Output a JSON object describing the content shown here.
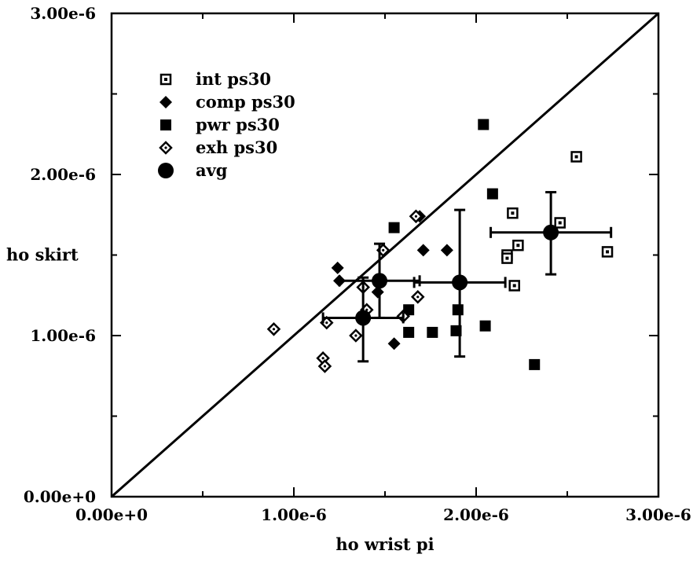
{
  "chart_data": {
    "type": "scatter",
    "title": "",
    "xlabel": "ho wrist pi",
    "ylabel": "ho skirt",
    "xlim": [
      0,
      3e-06
    ],
    "ylim": [
      0,
      3e-06
    ],
    "x_ticks": [
      0,
      1e-06,
      2e-06,
      3e-06
    ],
    "y_ticks": [
      0,
      1e-06,
      2e-06,
      3e-06
    ],
    "x_tick_labels": [
      "0.00e+0",
      "1.00e-6",
      "2.00e-6",
      "3.00e-6"
    ],
    "y_tick_labels": [
      "0.00e+0",
      "1.00e-6",
      "2.00e-6",
      "3.00e-6"
    ],
    "grid": false,
    "legend_position": "top-left",
    "reference_line": {
      "type": "diagonal",
      "from": [
        0,
        0
      ],
      "to": [
        3e-06,
        3e-06
      ]
    },
    "series": [
      {
        "name": "int ps30",
        "marker": "open-square-dot",
        "points": [
          [
            2.55e-06,
            2.11e-06
          ],
          [
            2.2e-06,
            1.76e-06
          ],
          [
            2.46e-06,
            1.7e-06
          ],
          [
            2.23e-06,
            1.56e-06
          ],
          [
            2.17e-06,
            1.5e-06
          ],
          [
            2.17e-06,
            1.48e-06
          ],
          [
            2.72e-06,
            1.52e-06
          ],
          [
            2.21e-06,
            1.31e-06
          ]
        ]
      },
      {
        "name": "comp ps30",
        "marker": "filled-diamond",
        "points": [
          [
            1.24e-06,
            1.42e-06
          ],
          [
            1.25e-06,
            1.34e-06
          ],
          [
            1.69e-06,
            1.74e-06
          ],
          [
            1.71e-06,
            1.53e-06
          ],
          [
            1.84e-06,
            1.53e-06
          ],
          [
            1.55e-06,
            9.5e-07
          ],
          [
            1.46e-06,
            1.27e-06
          ]
        ]
      },
      {
        "name": "pwr ps30",
        "marker": "filled-square",
        "points": [
          [
            2.04e-06,
            2.31e-06
          ],
          [
            2.09e-06,
            1.88e-06
          ],
          [
            1.55e-06,
            1.67e-06
          ],
          [
            1.63e-06,
            1.16e-06
          ],
          [
            1.9e-06,
            1.16e-06
          ],
          [
            1.63e-06,
            1.02e-06
          ],
          [
            1.76e-06,
            1.02e-06
          ],
          [
            1.89e-06,
            1.03e-06
          ],
          [
            2.05e-06,
            1.06e-06
          ],
          [
            2.32e-06,
            8.2e-07
          ]
        ]
      },
      {
        "name": "exh ps30",
        "marker": "open-diamond-dot",
        "points": [
          [
            8.9e-07,
            1.04e-06
          ],
          [
            1.18e-06,
            1.08e-06
          ],
          [
            1.16e-06,
            8.6e-07
          ],
          [
            1.17e-06,
            8.1e-07
          ],
          [
            1.34e-06,
            1e-06
          ],
          [
            1.38e-06,
            1.3e-06
          ],
          [
            1.4e-06,
            1.16e-06
          ],
          [
            1.49e-06,
            1.53e-06
          ],
          [
            1.6e-06,
            1.12e-06
          ],
          [
            1.68e-06,
            1.24e-06
          ],
          [
            1.67e-06,
            1.74e-06
          ]
        ]
      },
      {
        "name": "avg",
        "marker": "filled-circle",
        "points": [
          {
            "x": 1.38e-06,
            "y": 1.11e-06,
            "x_err": [
              1.16e-06,
              1.6e-06
            ],
            "y_err": [
              8.4e-07,
              1.36e-06
            ]
          },
          {
            "x": 1.47e-06,
            "y": 1.34e-06,
            "x_err": [
              1.25e-06,
              1.69e-06
            ],
            "y_err": [
              1.11e-06,
              1.57e-06
            ]
          },
          {
            "x": 1.91e-06,
            "y": 1.33e-06,
            "x_err": [
              1.66e-06,
              2.16e-06
            ],
            "y_err": [
              8.7e-07,
              1.78e-06
            ]
          },
          {
            "x": 2.41e-06,
            "y": 1.64e-06,
            "x_err": [
              2.08e-06,
              2.74e-06
            ],
            "y_err": [
              1.38e-06,
              1.89e-06
            ]
          }
        ]
      }
    ]
  },
  "colors": {
    "ink": "#000000",
    "background": "#ffffff"
  }
}
